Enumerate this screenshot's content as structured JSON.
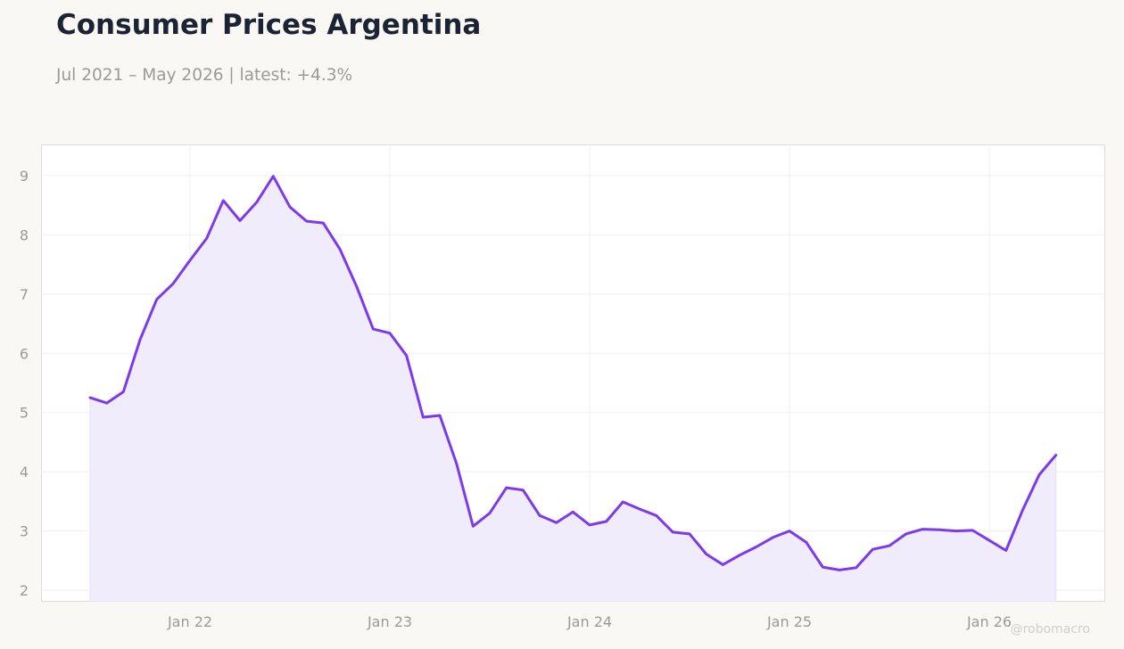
{
  "title": "Consumer Prices Argentina",
  "subtitle": "Jul 2021 – May 2026 | latest: +4.3%",
  "watermark": "@robomacro",
  "colors": {
    "line": "#7c3aed",
    "fill": "#f1ecfc",
    "background": "#f9f8f5",
    "plot_background": "#ffffff"
  },
  "chart_data": {
    "type": "area",
    "x_start": "2021-07",
    "x_end": "2026-05",
    "x_tick_labels": [
      "Jan 22",
      "Jan 23",
      "Jan 24",
      "Jan 25",
      "Jan 26"
    ],
    "x_ticks": [
      "2022-01",
      "2023-01",
      "2024-01",
      "2025-01",
      "2026-01"
    ],
    "y_ticks": [
      2,
      3,
      4,
      5,
      6,
      7,
      8,
      9
    ],
    "ylim": [
      1.8,
      9.5
    ],
    "grid": true,
    "series": [
      {
        "x": [
          "2021-07",
          "2021-08",
          "2021-09",
          "2021-10",
          "2021-11",
          "2021-12",
          "2022-01",
          "2022-02",
          "2022-03",
          "2022-04",
          "2022-05",
          "2022-06",
          "2022-07",
          "2022-08",
          "2022-09",
          "2022-10",
          "2022-11",
          "2022-12",
          "2023-01",
          "2023-02",
          "2023-03",
          "2023-04",
          "2023-05",
          "2023-06",
          "2023-07",
          "2023-08",
          "2023-09",
          "2023-10",
          "2023-11",
          "2023-12",
          "2024-01",
          "2024-02",
          "2024-03",
          "2024-04",
          "2024-05",
          "2024-06",
          "2024-07",
          "2024-08",
          "2024-09",
          "2024-10",
          "2024-11",
          "2024-12",
          "2025-01",
          "2025-02",
          "2025-03",
          "2025-04",
          "2025-05",
          "2025-06",
          "2025-07",
          "2025-08",
          "2025-09",
          "2025-10",
          "2025-11",
          "2025-12",
          "2026-01",
          "2026-02",
          "2026-03",
          "2026-04",
          "2026-05"
        ],
        "values": [
          5.25,
          5.16,
          5.35,
          6.23,
          6.91,
          7.18,
          7.57,
          7.94,
          8.58,
          8.24,
          8.55,
          8.99,
          8.47,
          8.23,
          8.2,
          7.76,
          7.13,
          6.41,
          6.34,
          5.96,
          4.92,
          4.95,
          4.14,
          3.08,
          3.3,
          3.73,
          3.69,
          3.26,
          3.14,
          3.32,
          3.1,
          3.16,
          3.49,
          3.37,
          3.26,
          2.98,
          2.95,
          2.61,
          2.43,
          2.59,
          2.73,
          2.89,
          3.0,
          2.81,
          2.39,
          2.34,
          2.38,
          2.69,
          2.75,
          2.95,
          3.03,
          3.02,
          3.0,
          3.01,
          2.84,
          2.67,
          3.35,
          3.95,
          4.28
        ]
      }
    ]
  }
}
